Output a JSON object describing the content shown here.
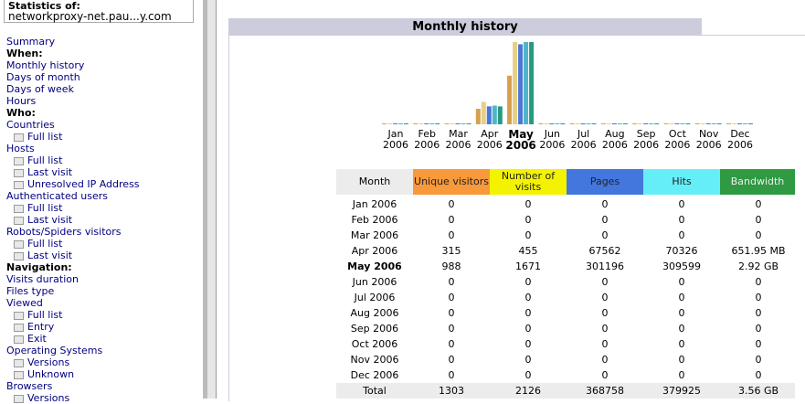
{
  "sidebar": {
    "stats_label": "Statistics of:",
    "site": "networkproxy-net.pau...y.com",
    "items": [
      {
        "text": "Summary",
        "kind": "link"
      },
      {
        "text": "When:",
        "kind": "heading"
      },
      {
        "text": "Monthly history",
        "kind": "link"
      },
      {
        "text": "Days of month",
        "kind": "link"
      },
      {
        "text": "Days of week",
        "kind": "link"
      },
      {
        "text": "Hours",
        "kind": "link"
      },
      {
        "text": "Who:",
        "kind": "heading"
      },
      {
        "text": "Countries",
        "kind": "link"
      },
      {
        "text": "Full list",
        "kind": "sub"
      },
      {
        "text": "Hosts",
        "kind": "link"
      },
      {
        "text": "Full list",
        "kind": "sub"
      },
      {
        "text": "Last visit",
        "kind": "sub"
      },
      {
        "text": "Unresolved IP Address",
        "kind": "sub"
      },
      {
        "text": "Authenticated users",
        "kind": "link"
      },
      {
        "text": "Full list",
        "kind": "sub"
      },
      {
        "text": "Last visit",
        "kind": "sub"
      },
      {
        "text": "Robots/Spiders visitors",
        "kind": "link"
      },
      {
        "text": "Full list",
        "kind": "sub"
      },
      {
        "text": "Last visit",
        "kind": "sub"
      },
      {
        "text": "Navigation:",
        "kind": "heading"
      },
      {
        "text": "Visits duration",
        "kind": "link"
      },
      {
        "text": "Files type",
        "kind": "link"
      },
      {
        "text": "Viewed",
        "kind": "link"
      },
      {
        "text": "Full list",
        "kind": "sub"
      },
      {
        "text": "Entry",
        "kind": "sub"
      },
      {
        "text": "Exit",
        "kind": "sub"
      },
      {
        "text": "Operating Systems",
        "kind": "link"
      },
      {
        "text": "Versions",
        "kind": "sub"
      },
      {
        "text": "Unknown",
        "kind": "sub"
      },
      {
        "text": "Browsers",
        "kind": "link"
      },
      {
        "text": "Versions",
        "kind": "sub"
      }
    ]
  },
  "monthly_history": {
    "title": "Monthly history",
    "month_header": "Month",
    "columns": [
      "Unique visitors",
      "Number of visits",
      "Pages",
      "Hits",
      "Bandwidth"
    ],
    "header_colors": [
      "#f8993b",
      "#f3f300",
      "#4477dd",
      "#66eef8",
      "#2f9a42"
    ],
    "bar_colors": [
      "#d8a04e",
      "#e6cf86",
      "#4a78d4",
      "#4fb5c9",
      "#279a80"
    ],
    "current_row": 4,
    "rows": [
      {
        "month": "Jan 2006",
        "values": [
          0,
          0,
          0,
          0,
          0
        ]
      },
      {
        "month": "Feb 2006",
        "values": [
          0,
          0,
          0,
          0,
          0
        ]
      },
      {
        "month": "Mar 2006",
        "values": [
          0,
          0,
          0,
          0,
          0
        ]
      },
      {
        "month": "Apr 2006",
        "values": [
          315,
          455,
          67562,
          70326,
          {
            "value": 651.95,
            "label": "651.95 MB"
          }
        ]
      },
      {
        "month": "May 2006",
        "values": [
          988,
          1671,
          301196,
          309599,
          {
            "value": 2990.08,
            "label": "2.92 GB"
          }
        ]
      },
      {
        "month": "Jun 2006",
        "values": [
          0,
          0,
          0,
          0,
          0
        ]
      },
      {
        "month": "Jul 2006",
        "values": [
          0,
          0,
          0,
          0,
          0
        ]
      },
      {
        "month": "Aug 2006",
        "values": [
          0,
          0,
          0,
          0,
          0
        ]
      },
      {
        "month": "Sep 2006",
        "values": [
          0,
          0,
          0,
          0,
          0
        ]
      },
      {
        "month": "Oct 2006",
        "values": [
          0,
          0,
          0,
          0,
          0
        ]
      },
      {
        "month": "Nov 2006",
        "values": [
          0,
          0,
          0,
          0,
          0
        ]
      },
      {
        "month": "Dec 2006",
        "values": [
          0,
          0,
          0,
          0,
          0
        ]
      }
    ],
    "total": {
      "label": "Total",
      "values": [
        1303,
        2126,
        368758,
        379925,
        {
          "value": 3645.44,
          "label": "3.56 GB"
        }
      ]
    }
  }
}
